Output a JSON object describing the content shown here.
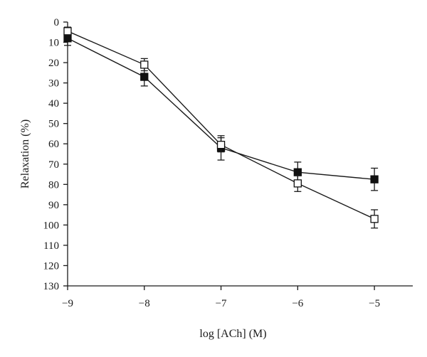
{
  "chart_data": {
    "type": "line",
    "title": "",
    "xlabel": "log [ACh] (M)",
    "ylabel": "Relaxation (%)",
    "x": [
      -9,
      -8,
      -7,
      -6,
      -5
    ],
    "x_ticks": [
      -9,
      -8,
      -7,
      -6,
      -5
    ],
    "x_tick_labels": [
      "−9",
      "−8",
      "−7",
      "−6",
      "−5"
    ],
    "xlim": [
      -9,
      -4.5
    ],
    "y_ticks": [
      0,
      10,
      20,
      30,
      40,
      50,
      60,
      70,
      80,
      90,
      100,
      110,
      120,
      130
    ],
    "y_tick_labels": [
      "0",
      "10",
      "20",
      "30",
      "40",
      "50",
      "60",
      "70",
      "80",
      "90",
      "100",
      "110",
      "120",
      "130"
    ],
    "ylim": [
      0,
      130
    ],
    "y_inverted": true,
    "grid": false,
    "legend": "none",
    "series": [
      {
        "marker": "filled-square",
        "color": "#111111",
        "values": [
          8,
          27,
          62,
          74,
          77.5
        ],
        "error": [
          3.5,
          4.5,
          6,
          5,
          5.5
        ]
      },
      {
        "marker": "open-square",
        "color": "#111111",
        "values": [
          4.5,
          21,
          60.5,
          79.5,
          97
        ],
        "error": [
          2,
          3,
          3.5,
          4,
          4.5
        ]
      }
    ]
  }
}
